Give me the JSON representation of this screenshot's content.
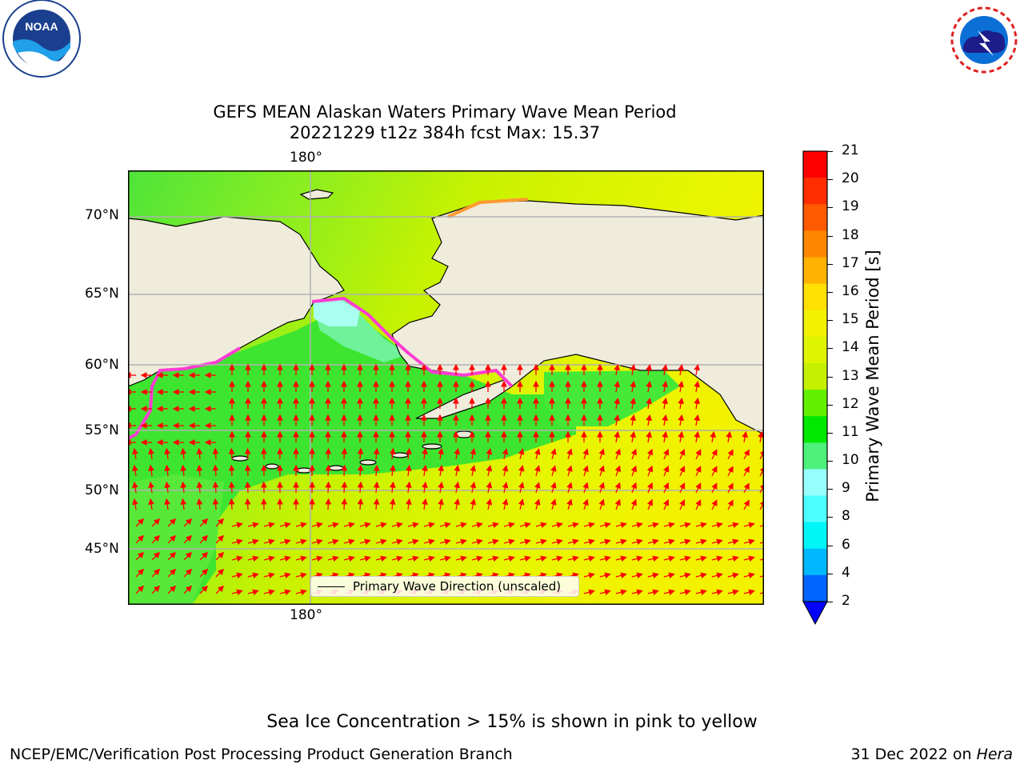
{
  "title": {
    "line1": "GEFS MEAN Alaskan Waters Primary Wave Mean Period",
    "line2": "20221229 t12z 384h fcst   Max: 15.37"
  },
  "map": {
    "lon_label": "180°",
    "lat_labels": [
      "70°N",
      "65°N",
      "60°N",
      "55°N",
      "50°N",
      "45°N"
    ],
    "legend_label": "Primary Wave Direction (unscaled)",
    "colors": {
      "land": "#efecdc",
      "grid": "#b0b0b0",
      "arrow": "#ff0000",
      "ice_edge": "#ff3cd2"
    }
  },
  "colorbar": {
    "label": "Primary Wave Mean Period [s]",
    "ticks": [
      "21",
      "20",
      "19",
      "18",
      "17",
      "16",
      "15",
      "14",
      "13",
      "12",
      "11",
      "10",
      "9",
      "8",
      "6",
      "4",
      "2"
    ],
    "colors": [
      "#ff0000",
      "#ff2d00",
      "#ff5a00",
      "#ff8700",
      "#ffb300",
      "#ffe000",
      "#f2f200",
      "#dff500",
      "#c5f000",
      "#63f000",
      "#00e800",
      "#4cf07a",
      "#98ffff",
      "#4cffff",
      "#00f6f6",
      "#00b8ff",
      "#0064ff"
    ],
    "underflow_color": "#0000ff"
  },
  "caption": "Sea Ice Concentration > 15% is shown in pink to yellow",
  "footer": {
    "left": "NCEP/EMC/Verification Post Processing Product Generation Branch",
    "right_date": "31 Dec 2022 on ",
    "right_machine": "Hera"
  },
  "logos": {
    "left": "NOAA",
    "right": "NATIONAL WEATHER SERVICE"
  }
}
